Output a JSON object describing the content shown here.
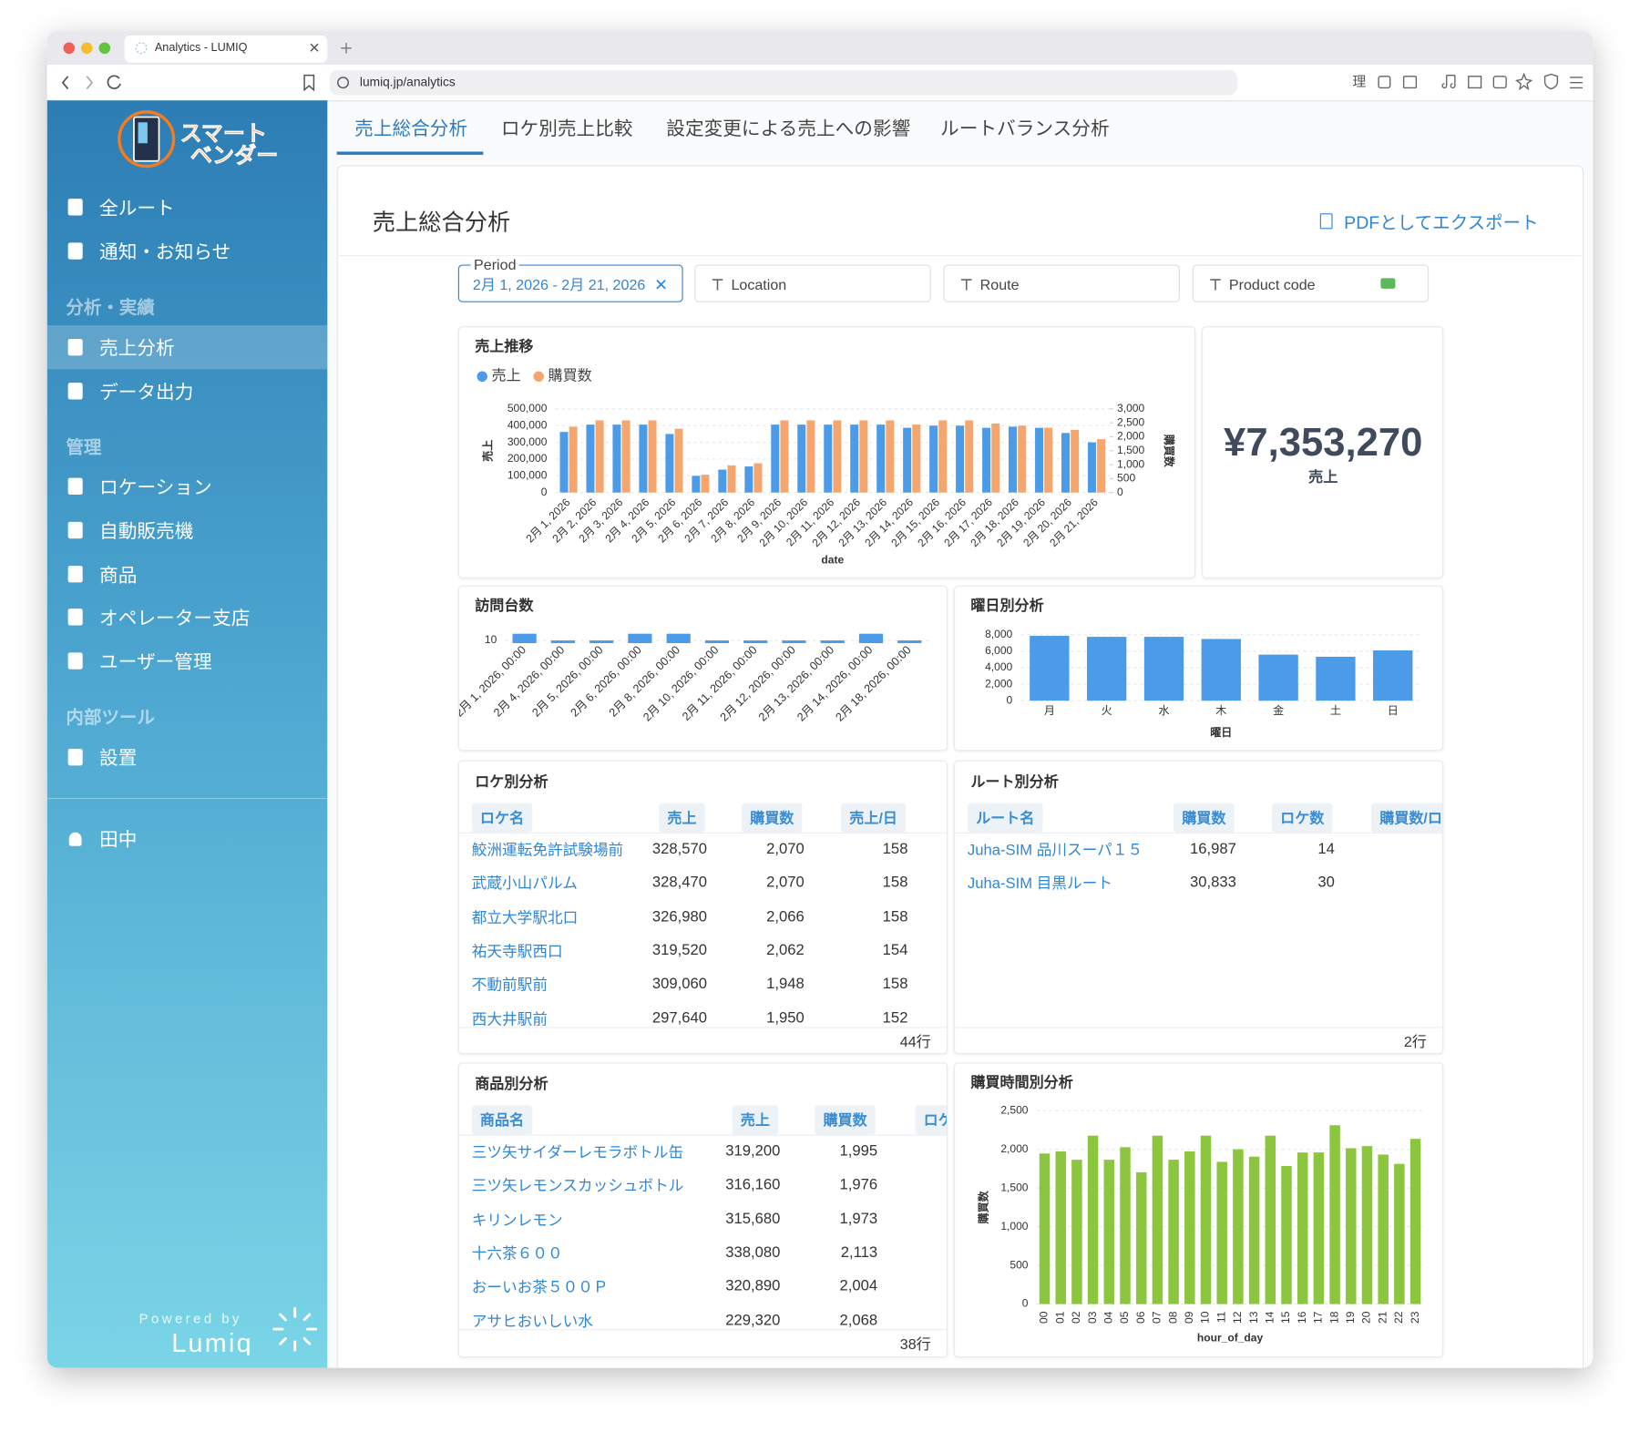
{
  "browser": {
    "tab_title": "Analytics - LUMIQ",
    "url": "lumiq.jp/analytics",
    "extension": "理"
  },
  "sidebar": {
    "logo": [
      "スマート",
      "ベンダー"
    ],
    "nav": [
      {
        "label": "全ルート"
      },
      {
        "label": "通知・お知らせ"
      }
    ],
    "sections": [
      {
        "title": "分析・実績",
        "items": [
          {
            "label": "売上分析",
            "active": true
          },
          {
            "label": "データ出力"
          }
        ]
      },
      {
        "title": "管理",
        "items": [
          {
            "label": "ロケーション"
          },
          {
            "label": "自動販売機"
          },
          {
            "label": "商品"
          },
          {
            "label": "オペレーター支店"
          },
          {
            "label": "ユーザー管理"
          }
        ]
      },
      {
        "title": "内部ツール",
        "items": [
          {
            "label": "設置"
          }
        ]
      }
    ],
    "user": "田中",
    "footer": [
      "Powered by",
      "Lumiq"
    ]
  },
  "tabs": [
    "売上総合分析",
    "ロケ別売上比較",
    "設定変更による売上への影響",
    "ルートバランス分析"
  ],
  "active_tab": 0,
  "page": {
    "title": "売上総合分析",
    "export": "PDFとしてエクスポート"
  },
  "filters": {
    "period_label": "Period",
    "period_value": "2月 1, 2026 - 2月 21, 2026",
    "fields": [
      "Location",
      "Route",
      "Product code"
    ]
  },
  "kpi": {
    "value": "¥7,353,270",
    "label": "売上"
  },
  "chart_data": [
    {
      "type": "bar",
      "title": "売上推移",
      "x_label": "date",
      "y_label": "売上",
      "y2_label": "購買数",
      "legend": "top-left",
      "grid": true,
      "categories": [
        "2月 1, 2026",
        "2月 2, 2026",
        "2月 3, 2026",
        "2月 4, 2026",
        "2月 5, 2026",
        "2月 6, 2026",
        "2月 7, 2026",
        "2月 8, 2026",
        "2月 9, 2026",
        "2月 10, 2026",
        "2月 11, 2026",
        "2月 12, 2026",
        "2月 13, 2026",
        "2月 14, 2026",
        "2月 15, 2026",
        "2月 16, 2026",
        "2月 17, 2026",
        "2月 18, 2026",
        "2月 19, 2026",
        "2月 20, 2026",
        "2月 21, 2026"
      ],
      "series": [
        {
          "name": "売上",
          "color": "#4c9be8",
          "values": [
            362000,
            406000,
            406000,
            406000,
            350000,
            100000,
            137000,
            156000,
            406000,
            406000,
            406000,
            406000,
            406000,
            387000,
            400000,
            400000,
            387000,
            394000,
            387000,
            356000,
            300000
          ]
        },
        {
          "name": "購買数",
          "color": "#f5a66e",
          "axis": "y2",
          "values": [
            2363,
            2588,
            2588,
            2588,
            2288,
            638,
            975,
            1050,
            2588,
            2588,
            2588,
            2588,
            2588,
            2438,
            2588,
            2588,
            2475,
            2400,
            2325,
            2250,
            1913
          ]
        }
      ],
      "ylim": [
        0,
        500000
      ],
      "yticks": [
        0,
        {
          "value": 100000,
          "label": "100,000"
        },
        {
          "value": 200000,
          "label": "200,000"
        },
        {
          "value": 300000,
          "label": "300,000"
        },
        {
          "value": 400000,
          "label": "400,000"
        },
        {
          "value": 500000,
          "label": "500,000"
        }
      ],
      "y2lim": [
        0,
        3000
      ],
      "y2ticks": [
        0,
        500,
        {
          "value": 1000,
          "label": "1,000"
        },
        {
          "value": 1500,
          "label": "1,500"
        },
        {
          "value": 2000,
          "label": "2,000"
        },
        {
          "value": 2500,
          "label": "2,500"
        },
        {
          "value": 3000,
          "label": "3,000"
        }
      ]
    },
    {
      "type": "bar",
      "title": "訪問台数",
      "color": "#4c9be8",
      "grid": true,
      "categories": [
        "2月 1, 2026, 00:00",
        "2月 4, 2026, 00:00",
        "2月 5, 2026, 00:00",
        "2月 6, 2026, 00:00",
        "2月 8, 2026, 00:00",
        "2月 10, 2026, 00:00",
        "2月 11, 2026, 00:00",
        "2月 12, 2026, 00:00",
        "2月 13, 2026, 00:00",
        "2月 14, 2026, 00:00",
        "2月 18, 2026, 00:00"
      ],
      "values": [
        11,
        10,
        10,
        11,
        11,
        10,
        10,
        10,
        10,
        11,
        10
      ],
      "ylim": [
        9.6,
        11
      ],
      "yticks": [
        10
      ]
    },
    {
      "type": "bar",
      "title": "曜日別分析",
      "x_label": "曜日",
      "color": "#4c9be8",
      "grid": true,
      "categories": [
        "月",
        "火",
        "水",
        "木",
        "金",
        "土",
        "日"
      ],
      "values": [
        7870,
        7750,
        7750,
        7490,
        5590,
        5330,
        6100
      ],
      "ylim": [
        0,
        8000
      ],
      "yticks": [
        0,
        {
          "value": 2000,
          "label": "2,000"
        },
        {
          "value": 4000,
          "label": "4,000"
        },
        {
          "value": 6000,
          "label": "6,000"
        },
        {
          "value": 8000,
          "label": "8,000"
        }
      ]
    },
    {
      "type": "bar",
      "title": "購買時間別分析",
      "x_label": "hour_of_day",
      "y_label": "購買数",
      "color": "#8cc63f",
      "grid": true,
      "categories": [
        "00",
        "01",
        "02",
        "03",
        "04",
        "05",
        "06",
        "07",
        "08",
        "09",
        "10",
        "11",
        "12",
        "13",
        "14",
        "15",
        "16",
        "17",
        "18",
        "19",
        "20",
        "21",
        "22",
        "23"
      ],
      "values": [
        1946,
        1973,
        1865,
        2176,
        1865,
        2027,
        1703,
        2176,
        1865,
        1973,
        2176,
        1838,
        2000,
        1905,
        2176,
        1784,
        1959,
        1959,
        2311,
        2014,
        2041,
        1932,
        1811,
        2135
      ],
      "ylim": [
        0,
        2500
      ],
      "yticks": [
        0,
        500,
        {
          "value": 1000,
          "label": "1,000"
        },
        {
          "value": 1500,
          "label": "1,500"
        },
        {
          "value": 2000,
          "label": "2,000"
        },
        {
          "value": 2500,
          "label": "2,500"
        }
      ]
    }
  ],
  "tables": [
    {
      "title": "ロケ別分析",
      "columns": [
        "ロケ名",
        "売上",
        "購買数",
        "売上/日"
      ],
      "rows": [
        [
          "鮫洲運転免許試験場前",
          "328,570",
          "2,070",
          "158"
        ],
        [
          "武蔵小山パルム",
          "328,470",
          "2,070",
          "158"
        ],
        [
          "都立大学駅北口",
          "326,980",
          "2,066",
          "158"
        ],
        [
          "祐天寺駅西口",
          "319,520",
          "2,062",
          "154"
        ],
        [
          "不動前駅前",
          "309,060",
          "1,948",
          "158"
        ],
        [
          "西大井駅前",
          "297,640",
          "1,950",
          "152"
        ]
      ],
      "footer": "44行"
    },
    {
      "title": "ルート別分析",
      "columns": [
        "ルート名",
        "購買数",
        "ロケ数",
        "購買数/ロ"
      ],
      "rows": [
        [
          "Juha-SIM 品川スーパ１５",
          "16,987",
          "14"
        ],
        [
          "Juha-SIM 目黒ルート",
          "30,833",
          "30"
        ]
      ],
      "footer": "2行"
    },
    {
      "title": "商品別分析",
      "columns": [
        "商品名",
        "売上",
        "購買数",
        "ロケ"
      ],
      "rows": [
        [
          "三ツ矢サイダーレモラボトル缶",
          "319,200",
          "1,995"
        ],
        [
          "三ツ矢レモンスカッシュボトル",
          "316,160",
          "1,976"
        ],
        [
          "キリンレモン",
          "315,680",
          "1,973"
        ],
        [
          "十六茶６００",
          "338,080",
          "2,113"
        ],
        [
          "おーいお茶５００Ｐ",
          "320,890",
          "2,004"
        ],
        [
          "アサヒおいしい水",
          "229,320",
          "2,068"
        ]
      ],
      "footer": "38行"
    }
  ]
}
